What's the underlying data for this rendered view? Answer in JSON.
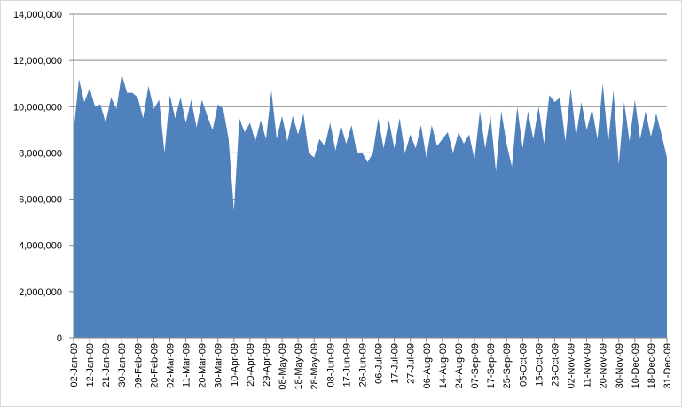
{
  "chart_data": {
    "type": "area",
    "color": "#4f81bd",
    "grid": true,
    "ylim": [
      0,
      14000000
    ],
    "yticks": [
      0,
      {
        "value": 2000000,
        "label": "2,000,000"
      },
      {
        "value": 4000000,
        "label": "4,000,000"
      },
      {
        "value": 6000000,
        "label": "6,000,000"
      },
      {
        "value": 8000000,
        "label": "8,000,000"
      },
      {
        "value": 10000000,
        "label": "10,000,000"
      },
      {
        "value": 12000000,
        "label": "12,000,000"
      },
      {
        "value": 14000000,
        "label": "14,000,000"
      }
    ],
    "categories": [
      "02-Jan-09",
      null,
      null,
      "12-Jan-09",
      null,
      null,
      "21-Jan-09",
      null,
      null,
      "30-Jan-09",
      null,
      null,
      "09-Feb-09",
      null,
      null,
      "20-Feb-09",
      null,
      null,
      "02-Mar-09",
      null,
      null,
      "11-Mar-09",
      null,
      null,
      "20-Mar-09",
      null,
      null,
      "30-Mar-09",
      null,
      null,
      "10-Apr-09",
      null,
      null,
      "20-Apr-09",
      null,
      null,
      "29-Apr-09",
      null,
      null,
      "08-May-09",
      null,
      null,
      "18-May-09",
      null,
      null,
      "28-May-09",
      null,
      null,
      "08-Jun-09",
      null,
      null,
      "17-Jun-09",
      null,
      null,
      "26-Jun-09",
      null,
      null,
      "06-Jul-09",
      null,
      null,
      "17-Jul-09",
      null,
      null,
      "27-Jul-09",
      null,
      null,
      "06-Aug-09",
      null,
      null,
      "14-Aug-09",
      null,
      null,
      "24-Aug-09",
      null,
      null,
      "07-Sep-09",
      null,
      null,
      "17-Sep-09",
      null,
      null,
      "25-Sep-09",
      null,
      null,
      "05-Oct-09",
      null,
      null,
      "15-Oct-09",
      null,
      null,
      "23-Oct-09",
      null,
      null,
      "02-Nov-09",
      null,
      null,
      "11-Nov-09",
      null,
      null,
      "20-Nov-09",
      null,
      null,
      "30-Nov-09",
      null,
      null,
      "10-Dec-09",
      null,
      null,
      "18-Dec-09",
      null,
      null,
      "31-Dec-09"
    ],
    "values": [
      8900000,
      11200000,
      10200000,
      10800000,
      10000000,
      10100000,
      9300000,
      10400000,
      9900000,
      11400000,
      10600000,
      10600000,
      10400000,
      9500000,
      10900000,
      9900000,
      10300000,
      8000000,
      10500000,
      9500000,
      10400000,
      9300000,
      10300000,
      9100000,
      10300000,
      9600000,
      9000000,
      10100000,
      9900000,
      8600000,
      5500000,
      9500000,
      8900000,
      9300000,
      8500000,
      9400000,
      8600000,
      10700000,
      8600000,
      9600000,
      8500000,
      9600000,
      8800000,
      9700000,
      8000000,
      7800000,
      8600000,
      8300000,
      9300000,
      8100000,
      9200000,
      8400000,
      9200000,
      8000000,
      8000000,
      7600000,
      8000000,
      9500000,
      8200000,
      9400000,
      8200000,
      9500000,
      8000000,
      8800000,
      8200000,
      9200000,
      7800000,
      9200000,
      8300000,
      8600000,
      8900000,
      8000000,
      8900000,
      8400000,
      8800000,
      7700000,
      9800000,
      8200000,
      9600000,
      7200000,
      9800000,
      8400000,
      7400000,
      10000000,
      8200000,
      9800000,
      8600000,
      10000000,
      8400000,
      10500000,
      10200000,
      10400000,
      8500000,
      10800000,
      8700000,
      10200000,
      9000000,
      9900000,
      8600000,
      11000000,
      8400000,
      10700000,
      7500000,
      10200000,
      8500000,
      10300000,
      8600000,
      9800000,
      8700000,
      9700000,
      8800000,
      7800000
    ]
  }
}
